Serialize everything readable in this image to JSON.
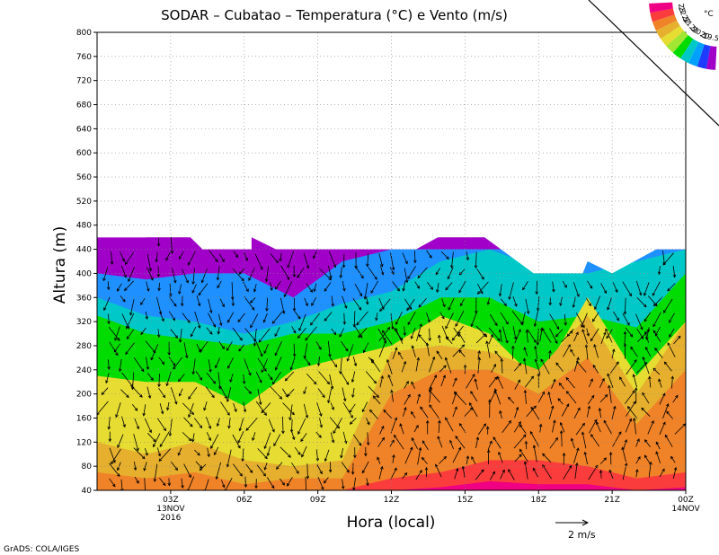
{
  "title": "SODAR – Cubatao – Temperatura (°C) e Vento (m/s)",
  "footer": "GrADS: COLA/IGES",
  "vector_key": {
    "value": 2,
    "label": "2  m/s"
  },
  "colors": {
    "background": "#ffffff",
    "levels": [
      "#a000c8",
      "#7d00e6",
      "#1e3cff",
      "#00a0ff",
      "#00c8c8",
      "#00dc00",
      "#a0e632",
      "#e6dc32",
      "#e6af2d",
      "#f08228",
      "#fa3c3c",
      "#f00082"
    ]
  },
  "chart_data": {
    "type": "heatmap",
    "title": "SODAR – Cubatao – Temperatura (°C) e Vento (m/s)",
    "xlabel": "Hora (local)",
    "ylabel": "Altura (m)",
    "ylim": [
      40,
      800
    ],
    "y_ticks": [
      40,
      80,
      120,
      160,
      200,
      240,
      280,
      320,
      360,
      400,
      440,
      480,
      520,
      560,
      600,
      640,
      680,
      720,
      760,
      800
    ],
    "xlim": [
      0,
      24
    ],
    "x_ticks": [
      {
        "hour": 3,
        "lines": [
          "03Z",
          "13NOV",
          "2016"
        ]
      },
      {
        "hour": 6,
        "lines": [
          "06Z"
        ]
      },
      {
        "hour": 9,
        "lines": [
          "09Z"
        ]
      },
      {
        "hour": 12,
        "lines": [
          "12Z"
        ]
      },
      {
        "hour": 15,
        "lines": [
          "15Z"
        ]
      },
      {
        "hour": 18,
        "lines": [
          "18Z"
        ]
      },
      {
        "hour": 21,
        "lines": [
          "21Z"
        ]
      },
      {
        "hour": 24,
        "lines": [
          "00Z",
          "14NOV"
        ]
      }
    ],
    "grid": true,
    "legend": {
      "unit": "°C",
      "labels": [
        "19.5",
        "20",
        "20.5",
        "21",
        "21.5",
        "22",
        "22.5",
        "23"
      ]
    },
    "temperature_levels": [
      19.5,
      20,
      20.5,
      21,
      21.5,
      22,
      22.5,
      23
    ],
    "data_top_height": [
      {
        "hour": 0,
        "z": 460
      },
      {
        "hour": 2,
        "z": 460
      },
      {
        "hour": 2.3,
        "z": 500
      },
      {
        "hour": 3.3,
        "z": 480
      },
      {
        "hour": 4.3,
        "z": 440
      },
      {
        "hour": 6.3,
        "z": 440
      },
      {
        "hour": 6.3,
        "z": 460
      },
      {
        "hour": 7.3,
        "z": 440
      },
      {
        "hour": 13,
        "z": 440
      },
      {
        "hour": 14.8,
        "z": 480
      },
      {
        "hour": 15.8,
        "z": 460
      },
      {
        "hour": 17.8,
        "z": 400
      },
      {
        "hour": 19.8,
        "z": 400
      },
      {
        "hour": 20,
        "z": 420
      },
      {
        "hour": 21,
        "z": 400
      },
      {
        "hour": 22.8,
        "z": 440
      },
      {
        "hour": 24,
        "z": 440
      }
    ],
    "temperature_band_tops": [
      {
        "level": "<19.5",
        "heights": [
          460,
          460,
          460,
          460,
          460,
          460,
          460,
          460,
          460,
          460,
          460,
          460,
          460
        ]
      },
      {
        "level": "19.5-20",
        "heights": [
          400,
          390,
          400,
          400,
          360,
          420,
          440,
          440,
          440,
          440,
          440,
          440,
          440
        ]
      },
      {
        "level": "20-20.5",
        "heights": [
          360,
          330,
          320,
          300,
          320,
          350,
          370,
          420,
          440,
          410,
          400,
          420,
          440
        ]
      },
      {
        "level": "20.5-21",
        "heights": [
          330,
          300,
          290,
          280,
          300,
          300,
          320,
          360,
          360,
          320,
          330,
          310,
          400
        ]
      },
      {
        "level": "21-21.5",
        "heights": [
          230,
          220,
          220,
          180,
          240,
          260,
          280,
          330,
          300,
          220,
          360,
          230,
          320
        ]
      },
      {
        "level": "21.5-22",
        "heights": [
          120,
          100,
          120,
          90,
          80,
          90,
          270,
          280,
          270,
          240,
          330,
          200,
          320
        ]
      },
      {
        "level": "22-22.5",
        "heights": [
          70,
          60,
          70,
          50,
          60,
          60,
          200,
          240,
          240,
          200,
          260,
          150,
          240
        ]
      },
      {
        "level": "22.5-23",
        "heights": [
          40,
          40,
          40,
          40,
          40,
          40,
          60,
          70,
          90,
          90,
          80,
          60,
          70
        ]
      },
      {
        "level": ">23",
        "heights": [
          40,
          40,
          40,
          40,
          40,
          40,
          40,
          45,
          55,
          50,
          50,
          40,
          45
        ]
      }
    ]
  }
}
